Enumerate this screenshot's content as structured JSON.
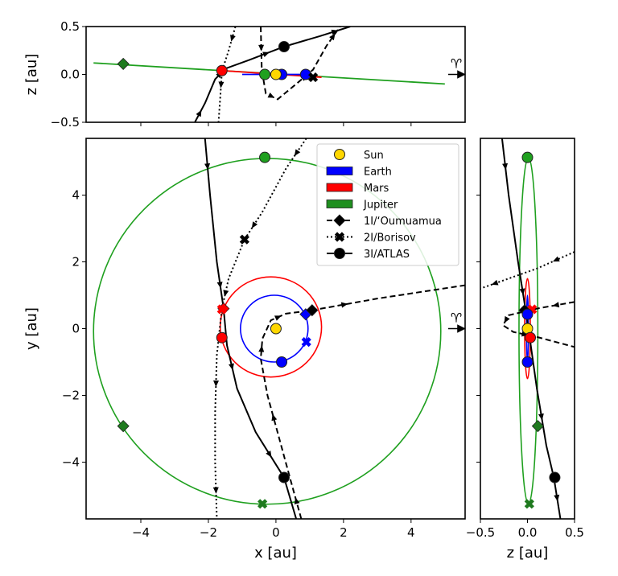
{
  "chart_data": [
    {
      "panel": "main",
      "type": "line",
      "xlabel": "x [au]",
      "ylabel": "y [au]",
      "xlim": [
        -5.62,
        5.6
      ],
      "ylim": [
        -5.7,
        5.7
      ],
      "xticks": [
        -4,
        -2,
        0,
        2,
        4
      ],
      "yticks": [
        -4,
        -2,
        0,
        2,
        4
      ],
      "xticklabels": [
        "−4",
        "−2",
        "0",
        "2",
        "4"
      ],
      "yticklabels": [
        "−4",
        "−2",
        "0",
        "2",
        "4"
      ],
      "orbits": [
        {
          "name": "Earth",
          "cx": -0.05,
          "cy": 0,
          "rx": 1.0,
          "ry": 1.0,
          "color": "#0000ff"
        },
        {
          "name": "Mars",
          "cx": -0.15,
          "cy": 0.05,
          "rx": 1.5,
          "ry": 1.5,
          "color": "#ff0000"
        },
        {
          "name": "Jupiter",
          "cx": -0.26,
          "cy": -0.08,
          "rx": 5.14,
          "ry": 5.18,
          "color": "#1fa01f"
        }
      ],
      "trajectories": [
        {
          "name": "1I/‘Oumuamua",
          "style": "dashed",
          "points": [
            [
              0.75,
              -5.7
            ],
            [
              0.45,
              -4.6
            ],
            [
              0.1,
              -3.3
            ],
            [
              -0.25,
              -2.0
            ],
            [
              -0.45,
              -0.9
            ],
            [
              -0.4,
              -0.3
            ],
            [
              -0.15,
              0.25
            ],
            [
              0.3,
              0.45
            ],
            [
              1.07,
              0.55
            ],
            [
              3,
              0.9
            ],
            [
              5.6,
              1.3
            ]
          ]
        },
        {
          "name": "2I/Borisov",
          "style": "dotted",
          "points": [
            [
              0.9,
              5.7
            ],
            [
              0.3,
              4.8
            ],
            [
              -0.4,
              3.5
            ],
            [
              -0.93,
              2.67
            ],
            [
              -1.4,
              1.5
            ],
            [
              -1.6,
              0.6
            ],
            [
              -1.75,
              -0.8
            ],
            [
              -1.8,
              -2.5
            ],
            [
              -1.8,
              -4
            ],
            [
              -1.75,
              -5.7
            ]
          ]
        },
        {
          "name": "3I/ATLAS",
          "style": "solid",
          "points": [
            [
              -2.1,
              5.7
            ],
            [
              -1.95,
              4
            ],
            [
              -1.75,
              2
            ],
            [
              -1.55,
              0.6
            ],
            [
              -1.45,
              -0.5
            ],
            [
              -1.15,
              -1.8
            ],
            [
              -0.6,
              -3.1
            ],
            [
              0.24,
              -4.46
            ],
            [
              0.6,
              -5.7
            ]
          ]
        }
      ],
      "markers": [
        {
          "object": "Sun",
          "shape": "circle",
          "x": 0,
          "y": 0,
          "color": "#ffd700"
        },
        {
          "object": "Earth",
          "shape": "circle",
          "x": 0.17,
          "y": -1.0,
          "color": "#0000ff"
        },
        {
          "object": "Mars",
          "shape": "circle",
          "x": -1.6,
          "y": -0.27,
          "color": "#ff0000"
        },
        {
          "object": "Jupiter",
          "shape": "circle",
          "x": -0.33,
          "y": 5.13,
          "color": "#1fa01f"
        },
        {
          "object": "3I/ATLAS",
          "shape": "circle",
          "x": 0.24,
          "y": -4.46,
          "color": "#000000"
        },
        {
          "object": "Jupiter",
          "shape": "diamond",
          "x": -4.52,
          "y": -2.92,
          "color": "#1f7a1f"
        },
        {
          "object": "Earth",
          "shape": "diamond",
          "x": 0.88,
          "y": 0.43,
          "color": "#0000ff"
        },
        {
          "object": "Mars",
          "shape": "diamond",
          "x": -1.55,
          "y": 0.6,
          "color": "#ff0000"
        },
        {
          "object": "1I/‘Oumuamua",
          "shape": "diamond",
          "x": 1.07,
          "y": 0.55,
          "color": "#000000"
        },
        {
          "object": "Mars",
          "shape": "x",
          "x": -1.6,
          "y": 0.58,
          "color": "#ff0000"
        },
        {
          "object": "Earth",
          "shape": "x",
          "x": 0.9,
          "y": -0.4,
          "color": "#0000ff"
        },
        {
          "object": "Jupiter",
          "shape": "x",
          "x": -0.4,
          "y": -5.25,
          "color": "#1f7a1f"
        },
        {
          "object": "2I/Borisov",
          "shape": "x",
          "x": -0.93,
          "y": 2.67,
          "color": "#000000"
        }
      ],
      "legend": {
        "placement": "top-right",
        "entries": [
          {
            "label": "Sun",
            "kind": "circle",
            "color": "#ffd700"
          },
          {
            "label": "Earth",
            "kind": "patch",
            "color": "#0000ff"
          },
          {
            "label": "Mars",
            "kind": "patch",
            "color": "#ff0000"
          },
          {
            "label": "Jupiter",
            "kind": "patch",
            "color": "#1f8f1f"
          },
          {
            "label": "1I/‘Oumuamua",
            "kind": "dashed-diamond"
          },
          {
            "label": "2I/Borisov",
            "kind": "dotted-x"
          },
          {
            "label": "3I/ATLAS",
            "kind": "solid-circle"
          }
        ]
      },
      "annotation": "♈"
    },
    {
      "panel": "top",
      "type": "line",
      "ylabel": "z [au]",
      "xlim": [
        -5.62,
        5.6
      ],
      "ylim": [
        -0.5,
        0.5
      ],
      "yticks": [
        -0.5,
        0,
        0.5
      ],
      "yticklabels": [
        "−0.5",
        "0.0",
        "0.5"
      ],
      "xticks": [
        -4,
        -2,
        0,
        2,
        4
      ],
      "orbits": [
        {
          "name": "Jupiter",
          "points": [
            [
              -5.4,
              0.12
            ],
            [
              5.0,
              -0.1
            ]
          ],
          "color": "#1fa01f"
        },
        {
          "name": "Mars",
          "points": [
            [
              -1.6,
              0.04
            ],
            [
              1.35,
              -0.03
            ]
          ],
          "color": "#ff0000"
        },
        {
          "name": "Earth",
          "points": [
            [
              -1.0,
              0.0
            ],
            [
              1.0,
              0.0
            ]
          ],
          "color": "#0000ff"
        }
      ],
      "trajectories": [
        {
          "style": "solid",
          "points": [
            [
              -2.4,
              -0.5
            ],
            [
              -2.1,
              -0.3
            ],
            [
              -1.8,
              -0.05
            ],
            [
              -1.5,
              0.06
            ],
            [
              -0.8,
              0.15
            ],
            [
              0.24,
              0.29
            ],
            [
              1.3,
              0.4
            ],
            [
              2.2,
              0.5
            ]
          ]
        },
        {
          "style": "dashed",
          "points": [
            [
              -0.45,
              0.5
            ],
            [
              -0.42,
              0.05
            ],
            [
              -0.3,
              -0.2
            ],
            [
              0.05,
              -0.26
            ],
            [
              0.6,
              -0.1
            ],
            [
              1.1,
              0.05
            ],
            [
              1.5,
              0.3
            ],
            [
              1.9,
              0.5
            ]
          ]
        },
        {
          "style": "dotted",
          "points": [
            [
              -1.2,
              0.5
            ],
            [
              -1.4,
              0.25
            ],
            [
              -1.6,
              0.03
            ],
            [
              -1.65,
              -0.25
            ],
            [
              -1.7,
              -0.5
            ]
          ]
        }
      ],
      "markers": [
        {
          "shape": "diamond",
          "x": -4.52,
          "y": 0.11,
          "color": "#1f7a1f"
        },
        {
          "shape": "circle",
          "x": 0.24,
          "y": 0.29,
          "color": "#000000"
        },
        {
          "shape": "circle",
          "x": -1.6,
          "y": 0.04,
          "color": "#ff0000"
        },
        {
          "shape": "circle",
          "x": -0.33,
          "y": 0.0,
          "color": "#1fa01f"
        },
        {
          "shape": "circle",
          "x": 0.17,
          "y": 0.0,
          "color": "#0000ff"
        },
        {
          "shape": "circle",
          "x": 0,
          "y": 0,
          "color": "#ffd700"
        },
        {
          "shape": "circle",
          "x": 0.88,
          "y": 0.0,
          "color": "#0000ff"
        },
        {
          "shape": "x",
          "x": 1.1,
          "y": -0.03,
          "color": "#000000"
        }
      ],
      "annotation": "♈"
    },
    {
      "panel": "right",
      "type": "line",
      "xlabel": "z [au]",
      "xlim": [
        -0.5,
        0.5
      ],
      "ylim": [
        -5.7,
        5.7
      ],
      "xticks": [
        -0.5,
        0,
        0.5
      ],
      "xticklabels": [
        "−0.5",
        "0.0",
        "0.5"
      ],
      "yticks": [
        -4,
        -2,
        0,
        2,
        4
      ],
      "orbits": [
        {
          "name": "Jupiter",
          "cx": 0.01,
          "cy": -0.06,
          "rx": 0.1,
          "ry": 5.19,
          "color": "#1fa01f"
        },
        {
          "name": "Mars",
          "cx": 0.0,
          "cy": 0.0,
          "rx": 0.03,
          "ry": 1.5,
          "color": "#ff0000"
        },
        {
          "name": "Earth",
          "cx": 0.0,
          "cy": 0.0,
          "rx": 0.01,
          "ry": 1.0,
          "color": "#0000ff"
        }
      ],
      "trajectories": [
        {
          "style": "solid",
          "points": [
            [
              -0.27,
              5.7
            ],
            [
              -0.2,
              4
            ],
            [
              -0.1,
              2
            ],
            [
              0.0,
              0.2
            ],
            [
              0.1,
              -1.8
            ],
            [
              0.2,
              -3.5
            ],
            [
              0.28,
              -4.46
            ],
            [
              0.35,
              -5.7
            ]
          ]
        },
        {
          "style": "dashed",
          "points": [
            [
              0.5,
              0.8
            ],
            [
              0.1,
              0.6
            ],
            [
              -0.2,
              0.4
            ],
            [
              -0.26,
              0.1
            ],
            [
              -0.15,
              -0.1
            ],
            [
              0.1,
              -0.25
            ],
            [
              0.5,
              -0.55
            ]
          ]
        },
        {
          "style": "dotted",
          "points": [
            [
              0.5,
              2.3
            ],
            [
              0.1,
              1.8
            ],
            [
              -0.2,
              1.5
            ],
            [
              -0.5,
              1.2
            ]
          ]
        }
      ],
      "markers": [
        {
          "shape": "circle",
          "x": 0.0,
          "y": 5.13,
          "color": "#1fa01f"
        },
        {
          "shape": "diamond",
          "x": 0.11,
          "y": -2.92,
          "color": "#1f7a1f"
        },
        {
          "shape": "circle",
          "x": 0.29,
          "y": -4.46,
          "color": "#000000"
        },
        {
          "shape": "x",
          "x": 0.02,
          "y": -5.25,
          "color": "#1f7a1f"
        },
        {
          "shape": "circle",
          "x": 0.0,
          "y": 0.0,
          "color": "#ffd700"
        },
        {
          "shape": "circle",
          "x": 0.0,
          "y": -1.0,
          "color": "#0000ff"
        },
        {
          "shape": "circle",
          "x": 0.03,
          "y": -0.27,
          "color": "#ff0000"
        },
        {
          "shape": "diamond",
          "x": -0.03,
          "y": 0.55,
          "color": "#000000"
        },
        {
          "shape": "x",
          "x": 0.05,
          "y": 0.58,
          "color": "#ff0000"
        },
        {
          "shape": "circle",
          "x": 0.0,
          "y": 0.43,
          "color": "#0000ff"
        }
      ]
    }
  ]
}
